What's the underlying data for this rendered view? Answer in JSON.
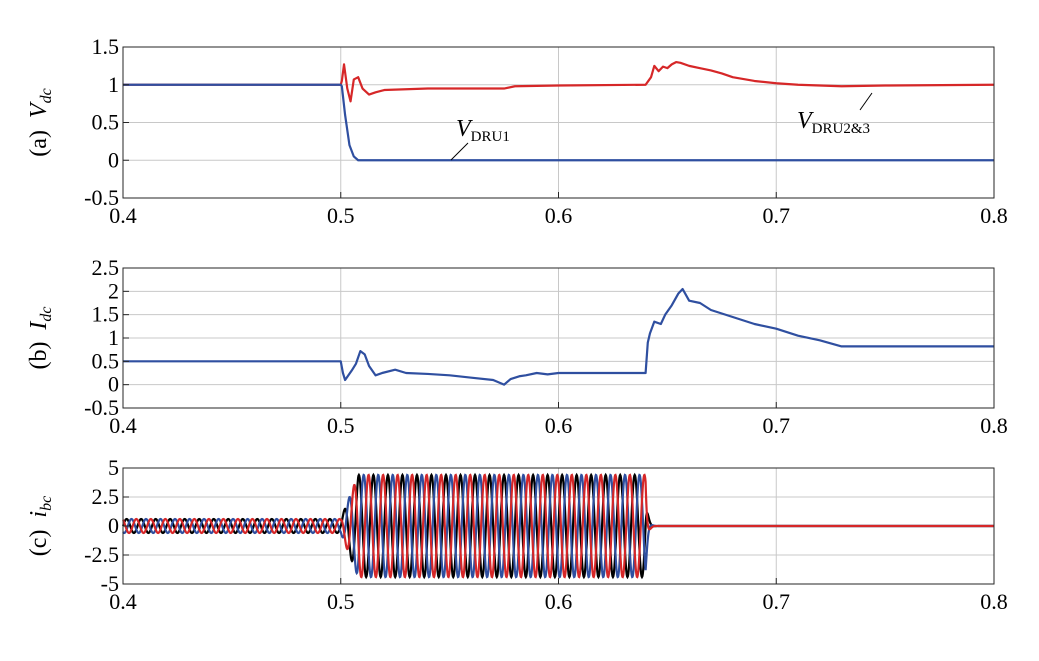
{
  "chart_data": [
    {
      "type": "line",
      "panel_label": "(a)",
      "ylabel": "V",
      "ylabel_sub": "dc",
      "xlim": [
        0.4,
        0.8
      ],
      "ylim": [
        -0.5,
        1.5
      ],
      "xticks": [
        "0.4",
        "0.5",
        "0.6",
        "0.7",
        "0.8"
      ],
      "yticks": [
        "1.5",
        "1",
        "0.5",
        "0",
        "-0.5"
      ],
      "grid": true,
      "series": [
        {
          "name": "V_DRU2&3",
          "color": "#d62728",
          "x": [
            0.4,
            0.5,
            0.5005,
            0.5015,
            0.503,
            0.5045,
            0.506,
            0.508,
            0.51,
            0.513,
            0.516,
            0.52,
            0.54,
            0.575,
            0.58,
            0.6,
            0.64,
            0.6425,
            0.644,
            0.646,
            0.648,
            0.65,
            0.652,
            0.654,
            0.656,
            0.66,
            0.665,
            0.67,
            0.675,
            0.68,
            0.69,
            0.7,
            0.71,
            0.72,
            0.73,
            0.75,
            0.8
          ],
          "y": [
            1.0,
            1.0,
            1.05,
            1.27,
            0.95,
            0.78,
            1.07,
            1.1,
            0.95,
            0.87,
            0.9,
            0.93,
            0.95,
            0.95,
            0.98,
            0.99,
            1.0,
            1.1,
            1.25,
            1.18,
            1.24,
            1.22,
            1.27,
            1.3,
            1.29,
            1.25,
            1.22,
            1.19,
            1.15,
            1.1,
            1.05,
            1.02,
            1.0,
            0.99,
            0.98,
            0.99,
            1.0
          ]
        },
        {
          "name": "V_DRU1",
          "color": "#2f4fa0",
          "x": [
            0.4,
            0.5,
            0.5005,
            0.502,
            0.504,
            0.506,
            0.508,
            0.8
          ],
          "y": [
            1.0,
            1.0,
            0.98,
            0.6,
            0.2,
            0.05,
            0.0,
            0.0
          ]
        }
      ],
      "annotations": [
        {
          "text": "V",
          "sub": "DRU1",
          "at": [
            0.55,
            0.0
          ]
        },
        {
          "text": "V",
          "sub": "DRU2&3",
          "at": [
            0.72,
            0.97
          ]
        }
      ]
    },
    {
      "type": "line",
      "panel_label": "(b)",
      "ylabel": "I",
      "ylabel_sub": "dc",
      "xlim": [
        0.4,
        0.8
      ],
      "ylim": [
        -0.5,
        2.5
      ],
      "xticks": [
        "0.4",
        "0.5",
        "0.6",
        "0.7",
        "0.8"
      ],
      "yticks": [
        "2.5",
        "2",
        "1.5",
        "1",
        "0.5",
        "0",
        "-0.5"
      ],
      "grid": true,
      "series": [
        {
          "name": "",
          "color": "#2f4fa0",
          "x": [
            0.4,
            0.5,
            0.501,
            0.502,
            0.505,
            0.507,
            0.509,
            0.511,
            0.513,
            0.516,
            0.519,
            0.525,
            0.53,
            0.54,
            0.55,
            0.56,
            0.57,
            0.575,
            0.578,
            0.582,
            0.585,
            0.59,
            0.595,
            0.6,
            0.62,
            0.64,
            0.641,
            0.642,
            0.644,
            0.647,
            0.649,
            0.652,
            0.655,
            0.657,
            0.66,
            0.665,
            0.67,
            0.68,
            0.69,
            0.7,
            0.71,
            0.72,
            0.73,
            0.8
          ],
          "y": [
            0.5,
            0.5,
            0.25,
            0.1,
            0.3,
            0.45,
            0.72,
            0.65,
            0.4,
            0.2,
            0.25,
            0.32,
            0.25,
            0.23,
            0.2,
            0.15,
            0.1,
            0.0,
            0.12,
            0.18,
            0.2,
            0.25,
            0.22,
            0.25,
            0.25,
            0.25,
            0.9,
            1.1,
            1.35,
            1.3,
            1.5,
            1.7,
            1.95,
            2.05,
            1.8,
            1.75,
            1.6,
            1.45,
            1.3,
            1.2,
            1.05,
            0.95,
            0.82,
            0.82
          ]
        }
      ]
    },
    {
      "type": "line",
      "panel_label": "(c)",
      "ylabel": "i",
      "ylabel_sub": "bc",
      "xlim": [
        0.4,
        0.8
      ],
      "ylim": [
        -5,
        5
      ],
      "xticks": [
        "0.4",
        "0.5",
        "0.6",
        "0.7",
        "0.8"
      ],
      "yticks": [
        "5",
        "2.5",
        "0",
        "-2.5",
        "-5"
      ],
      "grid": true,
      "signal": {
        "frequency_hz": 150,
        "amplitude_pre": 0.6,
        "amplitude_fault": 4.4,
        "fault_start": 0.5,
        "fault_end": 0.64
      },
      "series": [
        {
          "name": "",
          "color": "#000000",
          "phase_deg": 0
        },
        {
          "name": "",
          "color": "#2f4fa0",
          "phase_deg": -120
        },
        {
          "name": "",
          "color": "#d62728",
          "phase_deg": 120
        }
      ]
    }
  ]
}
